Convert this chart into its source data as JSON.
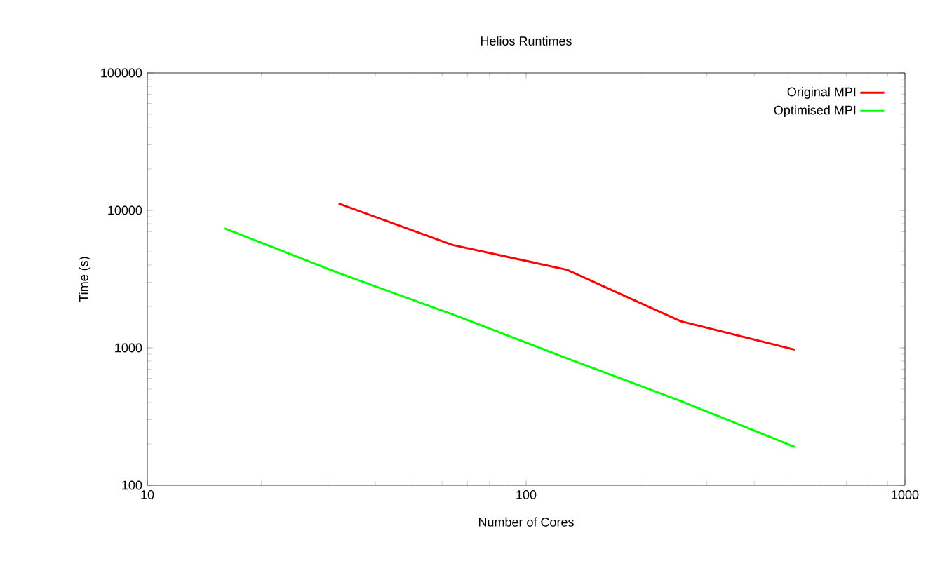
{
  "chart_data": {
    "type": "line",
    "title": "Helios Runtimes",
    "xlabel": "Number of Cores",
    "ylabel": "Time (s)",
    "log": "xy",
    "xlim": [
      10,
      1000
    ],
    "ylim": [
      100,
      100000
    ],
    "xticks": [
      10,
      100,
      1000
    ],
    "yticks": [
      100,
      1000,
      10000,
      100000
    ],
    "legend": "top right",
    "grid": false,
    "marker": "none",
    "line_style": "solid",
    "series": [
      {
        "name": "Original MPI",
        "color": "#ff0000",
        "x": [
          32,
          64,
          128,
          256,
          512
        ],
        "values": [
          11200,
          5600,
          3700,
          1560,
          970
        ]
      },
      {
        "name": "Optimised MPI",
        "color": "#00ff00",
        "x": [
          16,
          32,
          64,
          128,
          256,
          512
        ],
        "values": [
          7400,
          3500,
          1750,
          840,
          410,
          190
        ]
      }
    ]
  }
}
